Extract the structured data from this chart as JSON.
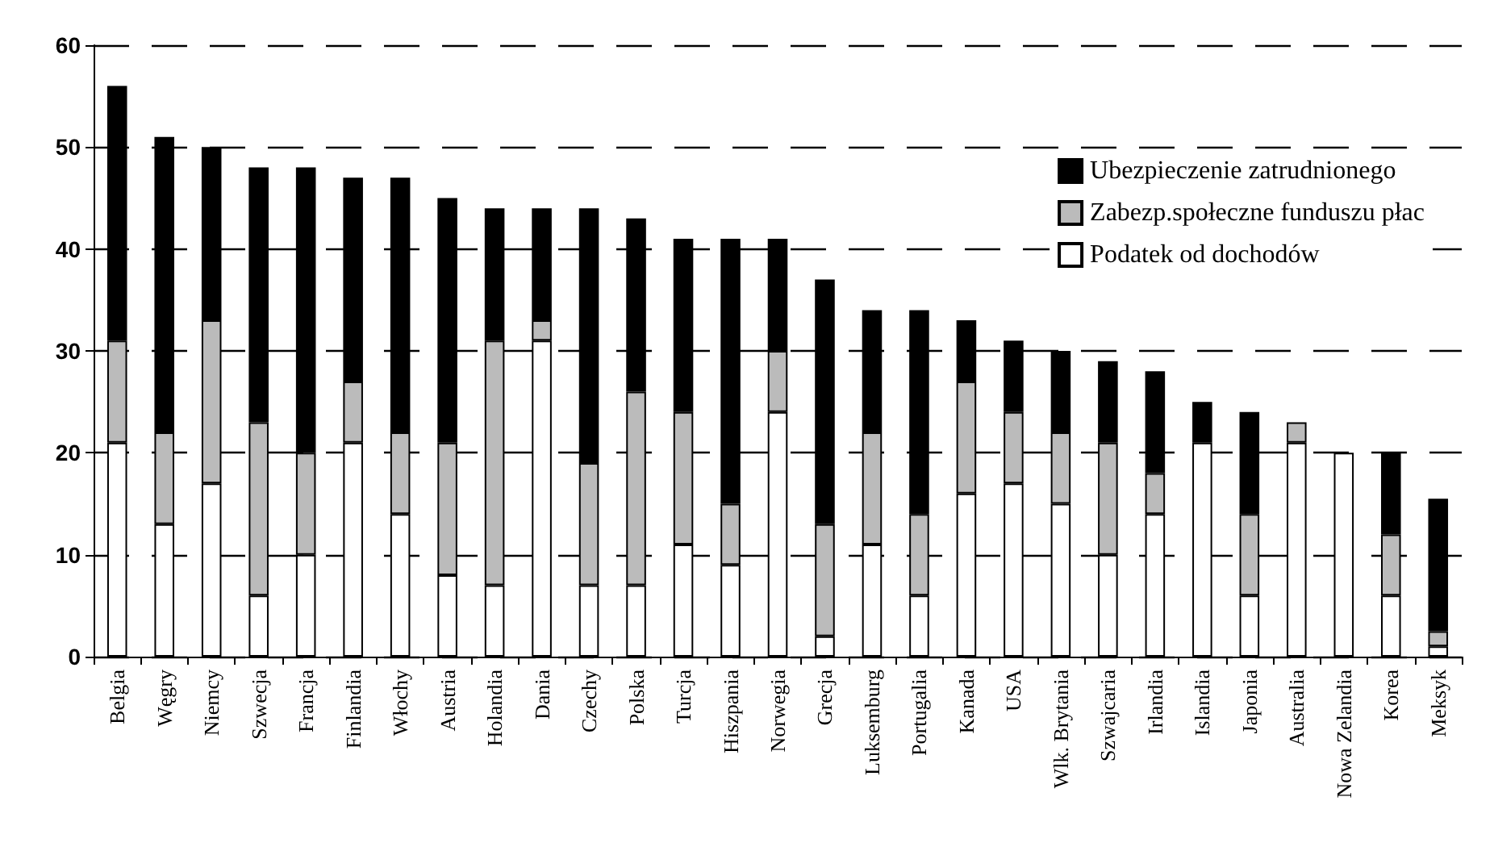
{
  "chart_data": {
    "type": "bar",
    "stacked": true,
    "categories": [
      "Belgia",
      "Węgry",
      "Niemcy",
      "Szwecja",
      "Francja",
      "Finlandia",
      "Włochy",
      "Austria",
      "Holandia",
      "Dania",
      "Czechy",
      "Polska",
      "Turcja",
      "Hiszpania",
      "Norwegia",
      "Grecja",
      "Luksemburg",
      "Portugalia",
      "Kanada",
      "USA",
      "Wlk. Brytania",
      "Szwajcaria",
      "Irlandia",
      "Islandia",
      "Japonia",
      "Australia",
      "Nowa Zelandia",
      "Korea",
      "Meksyk"
    ],
    "series": [
      {
        "name": "Podatek od dochodów",
        "color": "#ffffff",
        "values": [
          21,
          13,
          17,
          6,
          10,
          21,
          14,
          8,
          7,
          31,
          7,
          7,
          11,
          9,
          24,
          2,
          11,
          6,
          16,
          17,
          15,
          10,
          14,
          21,
          6,
          21,
          20,
          6,
          1
        ]
      },
      {
        "name": "Zabezp.społeczne funduszu płac",
        "color": "#bbbbbb",
        "values": [
          10,
          9,
          16,
          17,
          10,
          6,
          8,
          13,
          24,
          2,
          12,
          19,
          13,
          6,
          6,
          11,
          11,
          8,
          11,
          7,
          7,
          11,
          4,
          0,
          8,
          2,
          0,
          6,
          1.5
        ]
      },
      {
        "name": "Ubezpieczenie zatrudnionego",
        "color": "#000000",
        "values": [
          25,
          29,
          17,
          25,
          28,
          20,
          25,
          24,
          13,
          11,
          25,
          17,
          17,
          26,
          11,
          24,
          12,
          20,
          6,
          7,
          8,
          8,
          10,
          4,
          10,
          0,
          0,
          8,
          13
        ]
      }
    ],
    "ylim": [
      0,
      60
    ],
    "yticks": [
      0,
      10,
      20,
      30,
      40,
      50,
      60
    ],
    "grid": "y",
    "legend": "top right"
  }
}
